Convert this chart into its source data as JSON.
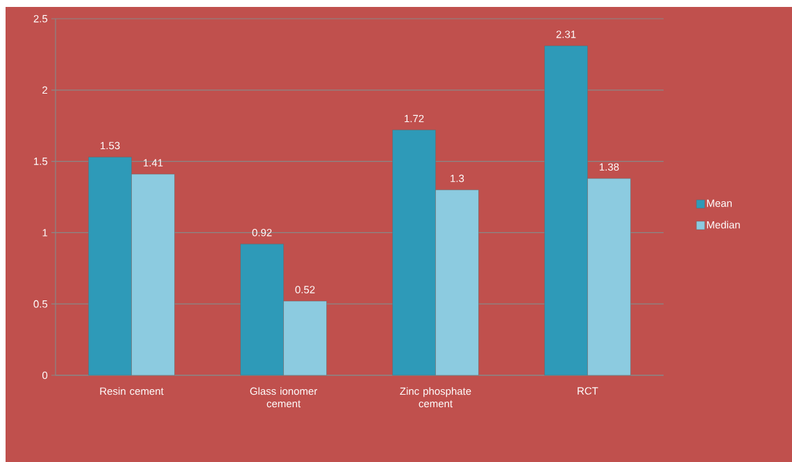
{
  "chart_data": {
    "type": "bar",
    "categories": [
      "Resin cement",
      "Glass ionomer cement",
      "Zinc phosphate cement",
      "RCT"
    ],
    "series": [
      {
        "name": "Mean",
        "color": "#2e9ab8",
        "values": [
          1.53,
          0.92,
          1.72,
          2.31
        ]
      },
      {
        "name": "Median",
        "color": "#8ccbe0",
        "values": [
          1.41,
          0.52,
          1.3,
          1.38
        ]
      }
    ],
    "ylim": [
      0,
      2.5
    ],
    "yticks": [
      0,
      0.5,
      1,
      1.5,
      2,
      2.5
    ],
    "grid": "y",
    "legend": "right",
    "data_labels": true
  }
}
